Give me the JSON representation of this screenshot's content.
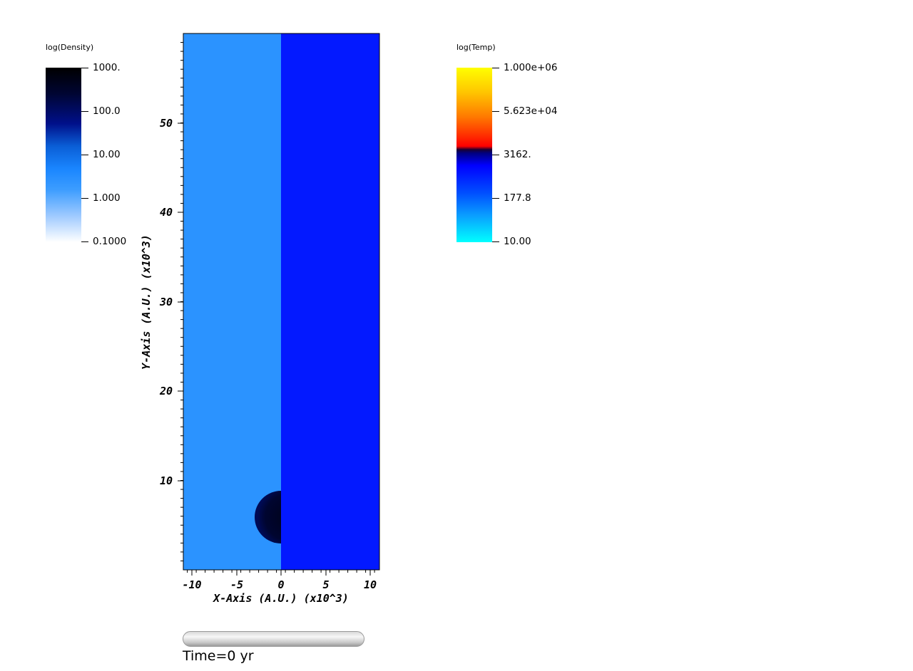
{
  "density_legend": {
    "title": "log(Density)",
    "tick_labels": [
      "1000.",
      "100.0",
      "10.00",
      "1.000",
      "0.1000"
    ]
  },
  "temp_legend": {
    "title": "log(Temp)",
    "tick_labels": [
      "1.000e+06",
      "5.623e+04",
      "3162.",
      "177.8",
      "10.00"
    ]
  },
  "plot": {
    "x_axis_label": "X-Axis (A.U.) (x10^3)",
    "y_axis_label": "Y-Axis (A.U.) (x10^3)",
    "x_tick_labels": [
      "-10",
      "-5",
      "0",
      "5",
      "10"
    ],
    "y_tick_labels": [
      "10",
      "20",
      "30",
      "40",
      "50"
    ],
    "left_panel_color": "#2b93ff",
    "right_panel_color": "#0319ff",
    "clump_color": "#00031f"
  },
  "time_text": "Time=0 yr"
}
